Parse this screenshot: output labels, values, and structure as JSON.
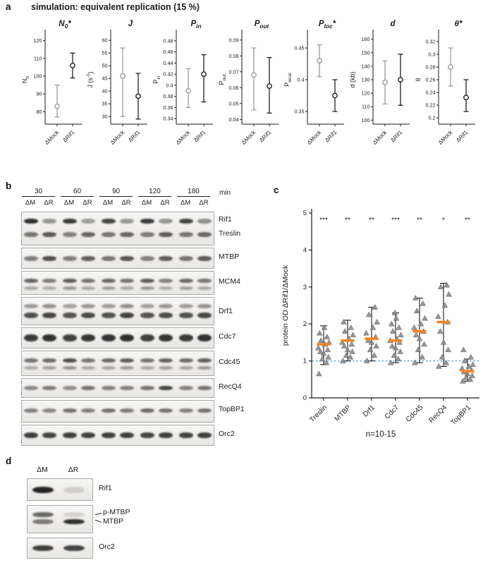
{
  "panel_a": {
    "label": "a",
    "title": "simulation: equivalent replication (15 %)",
    "x_categories": [
      "ΔMock",
      "ΔRif1"
    ],
    "chart_data": [
      {
        "type": "point-errorbar",
        "title_parts": [
          {
            "t": "N"
          },
          {
            "t": "0",
            "s": "sub"
          },
          {
            "t": "*"
          }
        ],
        "ylabel_parts": [
          {
            "t": "N"
          },
          {
            "t": "0",
            "s": "sub"
          }
        ],
        "ylim": [
          73,
          123
        ],
        "yticks": [
          {
            "v": 80,
            "t": "80"
          },
          {
            "v": 90,
            "t": "90"
          },
          {
            "v": 100,
            "t": "100"
          },
          {
            "v": 110,
            "t": "110"
          },
          {
            "v": 120,
            "t": "120"
          }
        ],
        "series": [
          {
            "name": "ΔMock",
            "color": "#9b9b9b",
            "y": 83,
            "lo": 77,
            "hi": 95
          },
          {
            "name": "ΔRif1",
            "color": "#1f1f1f",
            "y": 106,
            "lo": 99,
            "hi": 113
          }
        ]
      },
      {
        "type": "point-errorbar",
        "title_parts": [
          {
            "t": "J"
          }
        ],
        "ylabel_parts": [
          {
            "t": "J (s"
          },
          {
            "t": "-1",
            "s": "sup"
          },
          {
            "t": ")"
          }
        ],
        "ylim": [
          27,
          62
        ],
        "yticks": [
          {
            "v": 30,
            "t": "30"
          },
          {
            "v": 35,
            "t": "35"
          },
          {
            "v": 40,
            "t": "40"
          },
          {
            "v": 45,
            "t": "45"
          },
          {
            "v": 50,
            "t": "50"
          },
          {
            "v": 55,
            "t": "55"
          },
          {
            "v": 60,
            "t": "60"
          }
        ],
        "series": [
          {
            "name": "ΔMock",
            "color": "#9b9b9b",
            "y": 46,
            "lo": 30,
            "hi": 57
          },
          {
            "name": "ΔRif1",
            "color": "#1f1f1f",
            "y": 38,
            "lo": 29,
            "hi": 47
          }
        ]
      },
      {
        "type": "point-errorbar",
        "title_parts": [
          {
            "t": "P"
          },
          {
            "t": "in",
            "s": "sub"
          }
        ],
        "ylabel_parts": [
          {
            "t": "P"
          },
          {
            "t": "in",
            "s": "sub"
          }
        ],
        "ylim": [
          0.33,
          0.49
        ],
        "yticks": [
          {
            "v": 0.34,
            "t": "0.34"
          },
          {
            "v": 0.36,
            "t": "0.36"
          },
          {
            "v": 0.38,
            "t": "0.38"
          },
          {
            "v": 0.4,
            "t": "0.4"
          },
          {
            "v": 0.42,
            "t": "0.42"
          },
          {
            "v": 0.44,
            "t": "0.44"
          },
          {
            "v": 0.46,
            "t": "0.46"
          },
          {
            "v": 0.48,
            "t": "0.48"
          }
        ],
        "series": [
          {
            "name": "ΔMock",
            "color": "#9b9b9b",
            "y": 0.39,
            "lo": 0.36,
            "hi": 0.43
          },
          {
            "name": "ΔRif1",
            "color": "#1f1f1f",
            "y": 0.42,
            "lo": 0.37,
            "hi": 0.455
          }
        ]
      },
      {
        "type": "point-errorbar",
        "title_parts": [
          {
            "t": "P"
          },
          {
            "t": "out",
            "s": "sub"
          }
        ],
        "ylabel_parts": [
          {
            "t": "P"
          },
          {
            "t": "out",
            "s": "sub"
          }
        ],
        "ylim": [
          0.037,
          0.093
        ],
        "yticks": [
          {
            "v": 0.04,
            "t": "0.04"
          },
          {
            "v": 0.05,
            "t": "0.05"
          },
          {
            "v": 0.06,
            "t": "0.06"
          },
          {
            "v": 0.07,
            "t": "0.07"
          },
          {
            "v": 0.08,
            "t": "0.08"
          },
          {
            "v": 0.09,
            "t": "0.09"
          }
        ],
        "series": [
          {
            "name": "ΔMock",
            "color": "#9b9b9b",
            "y": 0.068,
            "lo": 0.046,
            "hi": 0.085
          },
          {
            "name": "ΔRif1",
            "color": "#1f1f1f",
            "y": 0.061,
            "lo": 0.044,
            "hi": 0.079
          }
        ]
      },
      {
        "type": "point-errorbar",
        "title_parts": [
          {
            "t": "P"
          },
          {
            "t": "loc",
            "s": "sub"
          },
          {
            "t": "*"
          }
        ],
        "ylabel_parts": [
          {
            "t": "P"
          },
          {
            "t": "local",
            "s": "sub"
          }
        ],
        "ylim": [
          0.33,
          0.47
        ],
        "yticks": [
          {
            "v": 0.35,
            "t": "0.35"
          },
          {
            "v": 0.4,
            "t": "0.4"
          },
          {
            "v": 0.45,
            "t": "0.45"
          }
        ],
        "series": [
          {
            "name": "ΔMock",
            "color": "#9b9b9b",
            "y": 0.43,
            "lo": 0.405,
            "hi": 0.455
          },
          {
            "name": "ΔRif1",
            "color": "#1f1f1f",
            "y": 0.375,
            "lo": 0.35,
            "hi": 0.4
          }
        ]
      },
      {
        "type": "point-errorbar",
        "title_parts": [
          {
            "t": "d"
          }
        ],
        "ylabel_parts": [
          {
            "t": "d (kb)"
          }
        ],
        "ylim": [
          97,
          163
        ],
        "yticks": [
          {
            "v": 100,
            "t": "100"
          },
          {
            "v": 110,
            "t": "110"
          },
          {
            "v": 120,
            "t": "120"
          },
          {
            "v": 130,
            "t": "130"
          },
          {
            "v": 140,
            "t": "140"
          },
          {
            "v": 150,
            "t": "150"
          },
          {
            "v": 160,
            "t": "160"
          }
        ],
        "series": [
          {
            "name": "ΔMock",
            "color": "#9b9b9b",
            "y": 128,
            "lo": 112,
            "hi": 144
          },
          {
            "name": "ΔRif1",
            "color": "#1f1f1f",
            "y": 130,
            "lo": 111,
            "hi": 149
          }
        ]
      },
      {
        "type": "point-errorbar",
        "title_parts": [
          {
            "t": "θ"
          },
          {
            "t": "*"
          }
        ],
        "ylabel_parts": [
          {
            "t": "θ"
          }
        ],
        "ylim": [
          0.19,
          0.33
        ],
        "yticks": [
          {
            "v": 0.2,
            "t": "0.2"
          },
          {
            "v": 0.22,
            "t": "0.22"
          },
          {
            "v": 0.24,
            "t": "0.24"
          },
          {
            "v": 0.26,
            "t": "0.26"
          },
          {
            "v": 0.28,
            "t": "0.28"
          },
          {
            "v": 0.3,
            "t": "0.3"
          },
          {
            "v": 0.32,
            "t": "0.32"
          }
        ],
        "series": [
          {
            "name": "ΔMock",
            "color": "#9b9b9b",
            "y": 0.28,
            "lo": 0.25,
            "hi": 0.31
          },
          {
            "name": "ΔRif1",
            "color": "#1f1f1f",
            "y": 0.232,
            "lo": 0.21,
            "hi": 0.26
          }
        ]
      }
    ]
  },
  "panel_b": {
    "label": "b",
    "time_points": [
      "30",
      "60",
      "90",
      "120",
      "180"
    ],
    "time_unit": "min",
    "lane_labels": [
      "ΔM",
      "ΔR"
    ],
    "strips": [
      {
        "height": 46,
        "rows": [
          {
            "y": 0.28,
            "th": 7,
            "intensities": [
              0.88,
              0.42,
              0.82,
              0.38,
              0.78,
              0.4,
              0.82,
              0.42,
              0.78,
              0.45
            ]
          },
          {
            "y": 0.68,
            "th": 7,
            "intensities": [
              0.55,
              0.68,
              0.5,
              0.62,
              0.55,
              0.62,
              0.52,
              0.66,
              0.55,
              0.62
            ]
          }
        ],
        "labels": [
          {
            "text": "Rif1",
            "y": 0.26
          },
          {
            "text": "Treslin",
            "y": 0.7
          }
        ]
      },
      {
        "height": 28,
        "rows": [
          {
            "y": 0.5,
            "th": 7,
            "intensities": [
              0.5,
              0.72,
              0.5,
              0.66,
              0.55,
              0.7,
              0.5,
              0.66,
              0.55,
              0.68
            ]
          }
        ],
        "labels": [
          {
            "text": "MTBP",
            "y": 0.5
          }
        ]
      },
      {
        "height": 32,
        "rows": [
          {
            "y": 0.4,
            "th": 6,
            "intensities": [
              0.62,
              0.5,
              0.66,
              0.55,
              0.6,
              0.55,
              0.66,
              0.5,
              0.6,
              0.55
            ]
          },
          {
            "y": 0.72,
            "th": 5,
            "intensities": [
              0.32,
              0.28,
              0.38,
              0.3,
              0.34,
              0.3,
              0.38,
              0.28,
              0.34,
              0.3
            ]
          }
        ],
        "labels": [
          {
            "text": "MCM4",
            "y": 0.5
          }
        ]
      },
      {
        "height": 38,
        "rows": [
          {
            "y": 0.32,
            "th": 6,
            "intensities": [
              0.38,
              0.42,
              0.36,
              0.4,
              0.38,
              0.44,
              0.36,
              0.4,
              0.38,
              0.42
            ]
          },
          {
            "y": 0.66,
            "th": 8,
            "intensities": [
              0.72,
              0.76,
              0.7,
              0.74,
              0.72,
              0.78,
              0.7,
              0.74,
              0.72,
              0.76
            ]
          }
        ],
        "labels": [
          {
            "text": "Drf1",
            "y": 0.55
          }
        ]
      },
      {
        "height": 28,
        "rows": [
          {
            "y": 0.5,
            "th": 10,
            "intensities": [
              0.82,
              0.86,
              0.8,
              0.85,
              0.84,
              0.88,
              0.8,
              0.85,
              0.82,
              0.86
            ]
          }
        ],
        "labels": [
          {
            "text": "Cdc7",
            "y": 0.5
          }
        ]
      },
      {
        "height": 34,
        "rows": [
          {
            "y": 0.38,
            "th": 6,
            "intensities": [
              0.56,
              0.6,
              0.72,
              0.55,
              0.6,
              0.66,
              0.56,
              0.64,
              0.6,
              0.66
            ]
          },
          {
            "y": 0.7,
            "th": 5,
            "intensities": [
              0.3,
              0.34,
              0.4,
              0.3,
              0.32,
              0.36,
              0.3,
              0.34,
              0.32,
              0.36
            ]
          }
        ],
        "labels": [
          {
            "text": "Cdc45",
            "y": 0.5
          }
        ]
      },
      {
        "height": 26,
        "rows": [
          {
            "y": 0.5,
            "th": 6,
            "intensities": [
              0.46,
              0.52,
              0.44,
              0.56,
              0.5,
              0.5,
              0.56,
              0.78,
              0.5,
              0.56
            ]
          }
        ],
        "labels": [
          {
            "text": "RecQ4",
            "y": 0.5
          }
        ]
      },
      {
        "height": 30,
        "rows": [
          {
            "y": 0.45,
            "th": 6,
            "intensities": [
              0.5,
              0.46,
              0.56,
              0.5,
              0.56,
              0.52,
              0.6,
              0.56,
              0.5,
              0.56
            ]
          }
        ],
        "labels": [
          {
            "text": "TopBP1",
            "y": 0.45
          }
        ]
      },
      {
        "height": 28,
        "rows": [
          {
            "y": 0.5,
            "th": 8,
            "intensities": [
              0.8,
              0.78,
              0.8,
              0.79,
              0.8,
              0.8,
              0.78,
              0.8,
              0.79,
              0.8
            ]
          }
        ],
        "labels": [
          {
            "text": "Orc2",
            "y": 0.5
          }
        ]
      }
    ]
  },
  "panel_c": {
    "label": "c",
    "chart_data": {
      "type": "scatter",
      "ylabel": "protein OD ΔRif1/ΔMock",
      "ylim": [
        0,
        5
      ],
      "yticks": [
        0,
        1,
        2,
        3,
        4,
        5
      ],
      "reference_line": 1,
      "note": "n=10-15",
      "colors": {
        "points": "#8a8a8a",
        "median": "#f58220",
        "reference": "#5aa7d8",
        "whisker": "#1a1a1a"
      },
      "categories": [
        "Treslin",
        "MTBP",
        "Drf1",
        "Cdc7",
        "Cdc45",
        "RecQ4",
        "TopBP1"
      ],
      "significance": [
        "***",
        "**",
        "**",
        "***",
        "**",
        "*",
        "**"
      ],
      "groups": [
        {
          "median": 1.45,
          "lo": 0.9,
          "hi": 1.95,
          "points": [
            0.65,
            0.95,
            1.05,
            1.1,
            1.2,
            1.25,
            1.3,
            1.35,
            1.45,
            1.5,
            1.55,
            1.65,
            1.75,
            1.9
          ]
        },
        {
          "median": 1.55,
          "lo": 1.0,
          "hi": 2.1,
          "points": [
            1.0,
            1.1,
            1.15,
            1.25,
            1.3,
            1.4,
            1.45,
            1.5,
            1.6,
            1.7,
            1.8,
            1.9,
            2.05
          ]
        },
        {
          "median": 1.6,
          "lo": 1.0,
          "hi": 2.45,
          "points": [
            1.0,
            1.15,
            1.3,
            1.4,
            1.5,
            1.55,
            1.65,
            1.75,
            1.9,
            2.05,
            2.25,
            2.45
          ]
        },
        {
          "median": 1.55,
          "lo": 0.95,
          "hi": 2.3,
          "points": [
            0.95,
            1.05,
            1.15,
            1.25,
            1.35,
            1.4,
            1.5,
            1.55,
            1.6,
            1.7,
            1.8,
            1.9,
            2.0,
            2.15,
            2.3
          ]
        },
        {
          "median": 1.8,
          "lo": 0.95,
          "hi": 2.7,
          "points": [
            0.95,
            1.1,
            1.3,
            1.45,
            1.6,
            1.7,
            1.8,
            1.9,
            2.0,
            2.15,
            2.35,
            2.55,
            2.7
          ]
        },
        {
          "median": 2.05,
          "lo": 0.85,
          "hi": 3.1,
          "points": [
            0.85,
            0.95,
            1.1,
            1.3,
            1.5,
            1.8,
            2.05,
            2.2,
            2.5,
            2.8,
            3.0,
            3.05
          ]
        },
        {
          "median": 0.72,
          "lo": 0.45,
          "hi": 1.05,
          "points": [
            0.45,
            0.5,
            0.55,
            0.6,
            0.65,
            0.7,
            0.75,
            0.8,
            0.85,
            0.9,
            1.0,
            1.1,
            1.3
          ]
        }
      ]
    }
  },
  "panel_d": {
    "label": "d",
    "lane_labels": [
      "ΔM",
      "ΔR"
    ],
    "strips": [
      {
        "height": 30,
        "rows": [
          {
            "y": 0.5,
            "th": 9,
            "intensities": [
              0.92,
              0.14
            ]
          }
        ],
        "labels": [
          {
            "text": "Rif1",
            "y": 0.5
          }
        ]
      },
      {
        "height": 38,
        "bracket": true,
        "rows": [
          {
            "y": 0.32,
            "th": 7,
            "intensities": [
              0.62,
              0.12
            ]
          },
          {
            "y": 0.6,
            "th": 7,
            "intensities": [
              0.52,
              0.88
            ]
          }
        ],
        "labels": [
          {
            "text": "p-MTBP",
            "y": 0.28
          },
          {
            "text": "MTBP",
            "y": 0.62
          }
        ]
      },
      {
        "height": 28,
        "rows": [
          {
            "y": 0.5,
            "th": 8,
            "intensities": [
              0.8,
              0.78
            ]
          }
        ],
        "labels": [
          {
            "text": "Orc2",
            "y": 0.5
          }
        ]
      }
    ]
  }
}
